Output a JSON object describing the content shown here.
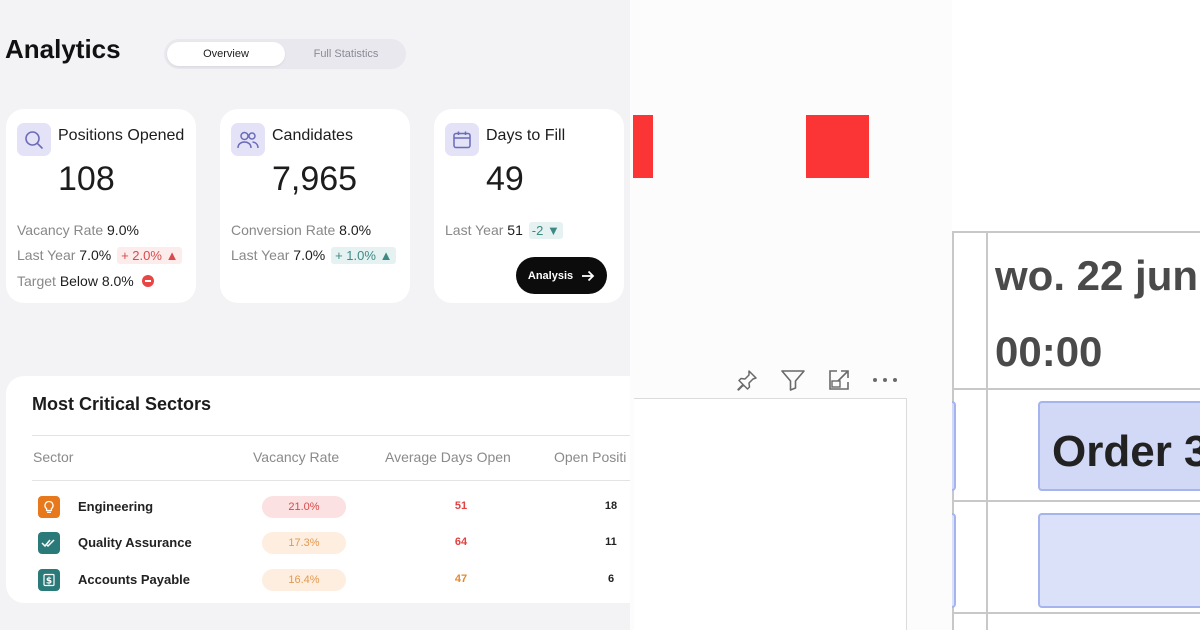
{
  "analytics": {
    "title": "Analytics",
    "tabs": [
      {
        "label": "Overview",
        "active": true
      },
      {
        "label": "Full Statistics",
        "active": false
      }
    ],
    "kpis": [
      {
        "icon": "search-icon",
        "title": "Positions Opened",
        "value": "108",
        "lines": [
          {
            "label": "Vacancy Rate",
            "value": "9.0%"
          },
          {
            "label": "Last Year",
            "value": "7.0%",
            "change": "+ 2.0%",
            "trend": "up"
          },
          {
            "label": "Target",
            "value": "Below 8.0%",
            "status": "stop"
          }
        ]
      },
      {
        "icon": "users-icon",
        "title": "Candidates",
        "value": "7,965",
        "lines": [
          {
            "label": "Conversion Rate",
            "value": "8.0%"
          },
          {
            "label": "Last Year",
            "value": "7.0%",
            "change": "+ 1.0%",
            "trend": "up"
          }
        ]
      },
      {
        "icon": "calendar-icon",
        "title": "Days to Fill",
        "value": "49",
        "lines": [
          {
            "label": "Last Year",
            "value": "51",
            "change": "-2",
            "trend": "down"
          }
        ],
        "button": "Analysis"
      }
    ],
    "sectors": {
      "title": "Most Critical Sectors",
      "columns": [
        "Sector",
        "Vacancy Rate",
        "Average Days Open",
        "Open Positi"
      ],
      "rows": [
        {
          "icon": "lightbulb-icon",
          "name": "Engineering",
          "rate": "21.0%",
          "days": "51",
          "open": "18"
        },
        {
          "icon": "double-check-icon",
          "name": "Quality Assurance",
          "rate": "17.3%",
          "days": "64",
          "open": "11"
        },
        {
          "icon": "dollar-doc-icon",
          "name": "Accounts Payable",
          "rate": "16.4%",
          "days": "47",
          "open": "6"
        }
      ]
    }
  },
  "visual": {
    "toolbar": [
      "pin-icon",
      "filter-icon",
      "focus-mode-icon",
      "more-options-icon"
    ]
  },
  "calendar": {
    "date": "wo. 22 jun",
    "time": "00:00",
    "event": "Order 3"
  },
  "colors": {
    "accent_red": "#fb3535",
    "up_red": "#d94a4a",
    "teal": "#3d8a85",
    "icon_bg": "#e3e2f7",
    "event_bg": "#d2d9f7"
  }
}
